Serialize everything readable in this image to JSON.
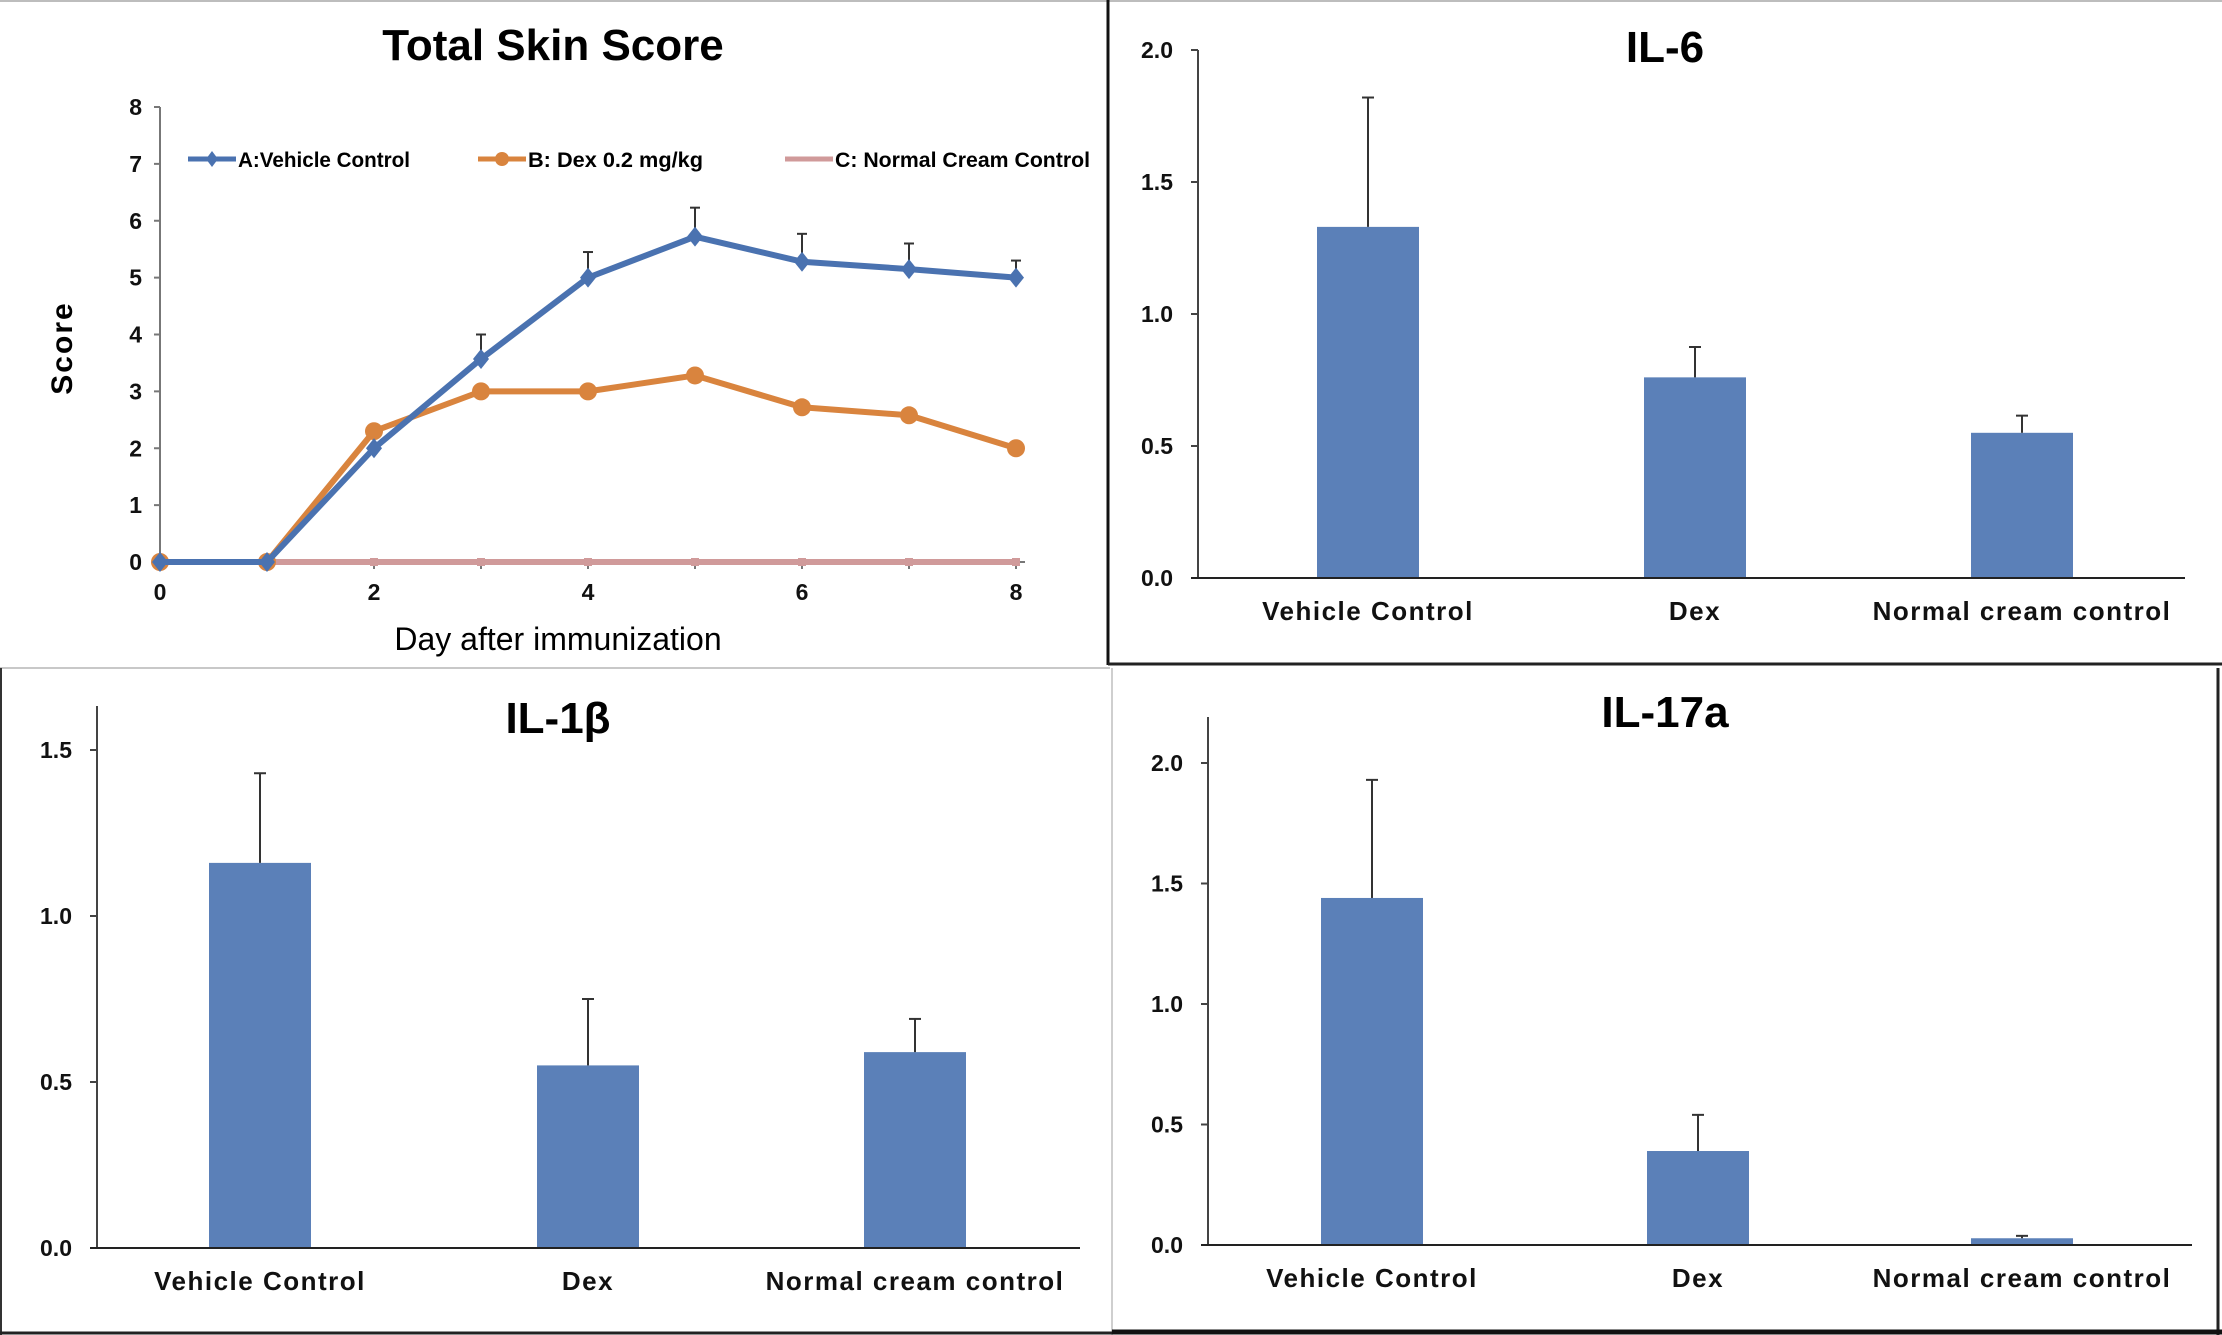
{
  "chart_data": [
    {
      "id": "skin",
      "type": "line",
      "title": "Total Skin Score",
      "xlabel": "Day after immunization",
      "ylabel": "Score",
      "xlim": [
        0,
        8
      ],
      "ylim": [
        0,
        8
      ],
      "x_ticks": [
        "0",
        "2",
        "4",
        "6",
        "8"
      ],
      "y_ticks": [
        "0",
        "1",
        "2",
        "3",
        "4",
        "5",
        "6",
        "7",
        "8"
      ],
      "grid": false,
      "legend_position": "top",
      "x": [
        0,
        1,
        2,
        3,
        4,
        5,
        6,
        7,
        8
      ],
      "series": [
        {
          "name": "A:Vehicle Control",
          "color": "#4a72b0",
          "marker": "diamond",
          "values": [
            0,
            0,
            2.0,
            3.57,
            5.0,
            5.72,
            5.28,
            5.15,
            5.0
          ],
          "error_plus": [
            0,
            0,
            0,
            0.43,
            0.45,
            0.51,
            0.49,
            0.45,
            0.3
          ]
        },
        {
          "name": "B: Dex  0.2 mg/kg",
          "color": "#d9843e",
          "marker": "circle",
          "values": [
            0,
            0,
            2.3,
            3.0,
            3.0,
            3.28,
            2.72,
            2.58,
            2.0
          ],
          "error_plus": [
            0,
            0,
            0,
            0,
            0,
            0,
            0,
            0,
            0
          ]
        },
        {
          "name": "C: Normal Cream Control",
          "color": "#d09a9a",
          "marker": "none",
          "values": [
            0,
            0,
            0,
            0,
            0,
            0,
            0,
            0,
            0
          ],
          "error_plus": [
            0,
            0,
            0,
            0,
            0,
            0,
            0,
            0,
            0
          ]
        }
      ]
    },
    {
      "id": "il6",
      "type": "bar",
      "title": "IL-6",
      "xlabel": "",
      "ylabel": "",
      "ylim": [
        0,
        2.0
      ],
      "y_ticks": [
        "0.0",
        "0.5",
        "1.0",
        "1.5",
        "2.0"
      ],
      "categories": [
        "Vehicle Control",
        "Dex",
        "Normal cream control"
      ],
      "values": [
        1.33,
        0.76,
        0.55
      ],
      "error_plus": [
        0.49,
        0.115,
        0.065
      ],
      "color": "#5b80b8"
    },
    {
      "id": "il1b",
      "type": "bar",
      "title": "IL-1β",
      "xlabel": "",
      "ylabel": "",
      "ylim": [
        0,
        1.6
      ],
      "y_ticks": [
        "0.0",
        "0.5",
        "1.0",
        "1.5"
      ],
      "categories": [
        "Vehicle Control",
        "Dex",
        "Normal cream control"
      ],
      "values": [
        1.16,
        0.55,
        0.59
      ],
      "error_plus": [
        0.27,
        0.2,
        0.1
      ],
      "color": "#5b80b8"
    },
    {
      "id": "il17a",
      "type": "bar",
      "title": "IL-17a",
      "xlabel": "",
      "ylabel": "",
      "ylim": [
        0,
        2.2
      ],
      "y_ticks": [
        "0.0",
        "0.5",
        "1.0",
        "1.5",
        "2.0"
      ],
      "categories": [
        "Vehicle Control",
        "Dex",
        "Normal cream control"
      ],
      "values": [
        1.44,
        0.39,
        0.028
      ],
      "error_plus": [
        0.49,
        0.15,
        0.01
      ],
      "color": "#5b80b8"
    }
  ]
}
